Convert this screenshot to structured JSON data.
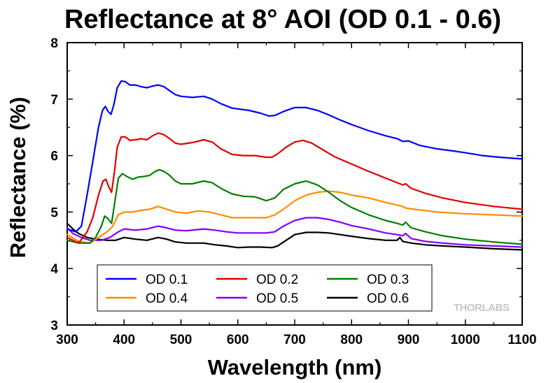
{
  "chart_data": {
    "type": "line",
    "title": "Reflectance at 8° AOI (OD 0.1 - 0.6)",
    "xlabel": "Wavelength (nm)",
    "ylabel": "Reflectance (%)",
    "xlim": [
      300,
      1100
    ],
    "ylim": [
      3,
      8
    ],
    "xticks": [
      300,
      400,
      500,
      600,
      700,
      800,
      900,
      1000,
      1100
    ],
    "yticks": [
      3,
      4,
      5,
      6,
      7,
      8
    ],
    "grid": false,
    "legend_position": "bottom-left",
    "watermark": "THORLABS",
    "series": [
      {
        "name": "OD 0.1",
        "color": "#0000ff",
        "points": [
          [
            300,
            4.7
          ],
          [
            315,
            4.65
          ],
          [
            325,
            4.75
          ],
          [
            335,
            5.3
          ],
          [
            345,
            5.9
          ],
          [
            355,
            6.5
          ],
          [
            362,
            6.8
          ],
          [
            367,
            6.87
          ],
          [
            372,
            6.78
          ],
          [
            377,
            6.73
          ],
          [
            382,
            6.9
          ],
          [
            388,
            7.2
          ],
          [
            395,
            7.32
          ],
          [
            402,
            7.31
          ],
          [
            410,
            7.25
          ],
          [
            420,
            7.25
          ],
          [
            430,
            7.22
          ],
          [
            440,
            7.2
          ],
          [
            450,
            7.23
          ],
          [
            460,
            7.25
          ],
          [
            470,
            7.22
          ],
          [
            480,
            7.15
          ],
          [
            490,
            7.08
          ],
          [
            500,
            7.05
          ],
          [
            520,
            7.03
          ],
          [
            540,
            7.05
          ],
          [
            555,
            7.0
          ],
          [
            570,
            6.92
          ],
          [
            590,
            6.84
          ],
          [
            620,
            6.8
          ],
          [
            640,
            6.75
          ],
          [
            655,
            6.7
          ],
          [
            665,
            6.71
          ],
          [
            680,
            6.78
          ],
          [
            700,
            6.85
          ],
          [
            720,
            6.85
          ],
          [
            740,
            6.8
          ],
          [
            760,
            6.72
          ],
          [
            780,
            6.63
          ],
          [
            800,
            6.55
          ],
          [
            830,
            6.44
          ],
          [
            860,
            6.35
          ],
          [
            880,
            6.3
          ],
          [
            890,
            6.25
          ],
          [
            900,
            6.26
          ],
          [
            920,
            6.18
          ],
          [
            950,
            6.12
          ],
          [
            980,
            6.08
          ],
          [
            1000,
            6.05
          ],
          [
            1030,
            6.0
          ],
          [
            1060,
            5.97
          ],
          [
            1100,
            5.94
          ]
        ]
      },
      {
        "name": "OD 0.2",
        "color": "#e00000",
        "points": [
          [
            300,
            4.55
          ],
          [
            320,
            4.45
          ],
          [
            335,
            4.65
          ],
          [
            345,
            4.9
          ],
          [
            355,
            5.3
          ],
          [
            363,
            5.55
          ],
          [
            368,
            5.58
          ],
          [
            373,
            5.45
          ],
          [
            378,
            5.35
          ],
          [
            383,
            5.7
          ],
          [
            388,
            6.15
          ],
          [
            395,
            6.33
          ],
          [
            402,
            6.33
          ],
          [
            410,
            6.27
          ],
          [
            420,
            6.28
          ],
          [
            430,
            6.3
          ],
          [
            440,
            6.28
          ],
          [
            450,
            6.35
          ],
          [
            460,
            6.4
          ],
          [
            470,
            6.37
          ],
          [
            480,
            6.3
          ],
          [
            490,
            6.22
          ],
          [
            500,
            6.2
          ],
          [
            520,
            6.23
          ],
          [
            540,
            6.28
          ],
          [
            555,
            6.24
          ],
          [
            570,
            6.12
          ],
          [
            590,
            6.02
          ],
          [
            610,
            6.0
          ],
          [
            630,
            6.0
          ],
          [
            650,
            5.97
          ],
          [
            660,
            5.97
          ],
          [
            670,
            6.03
          ],
          [
            685,
            6.15
          ],
          [
            700,
            6.24
          ],
          [
            715,
            6.27
          ],
          [
            730,
            6.22
          ],
          [
            750,
            6.1
          ],
          [
            770,
            5.98
          ],
          [
            800,
            5.85
          ],
          [
            830,
            5.72
          ],
          [
            860,
            5.6
          ],
          [
            885,
            5.5
          ],
          [
            890,
            5.48
          ],
          [
            895,
            5.5
          ],
          [
            905,
            5.42
          ],
          [
            930,
            5.33
          ],
          [
            960,
            5.25
          ],
          [
            1000,
            5.17
          ],
          [
            1050,
            5.1
          ],
          [
            1100,
            5.05
          ]
        ]
      },
      {
        "name": "OD 0.3",
        "color": "#008000",
        "points": [
          [
            300,
            4.5
          ],
          [
            320,
            4.45
          ],
          [
            340,
            4.45
          ],
          [
            350,
            4.55
          ],
          [
            360,
            4.75
          ],
          [
            366,
            4.93
          ],
          [
            372,
            4.88
          ],
          [
            378,
            4.8
          ],
          [
            384,
            5.2
          ],
          [
            390,
            5.6
          ],
          [
            397,
            5.68
          ],
          [
            405,
            5.63
          ],
          [
            415,
            5.58
          ],
          [
            425,
            5.62
          ],
          [
            435,
            5.63
          ],
          [
            445,
            5.65
          ],
          [
            455,
            5.72
          ],
          [
            462,
            5.75
          ],
          [
            470,
            5.72
          ],
          [
            480,
            5.65
          ],
          [
            490,
            5.55
          ],
          [
            500,
            5.5
          ],
          [
            520,
            5.5
          ],
          [
            540,
            5.55
          ],
          [
            555,
            5.52
          ],
          [
            570,
            5.42
          ],
          [
            590,
            5.32
          ],
          [
            610,
            5.28
          ],
          [
            630,
            5.27
          ],
          [
            650,
            5.2
          ],
          [
            665,
            5.25
          ],
          [
            680,
            5.4
          ],
          [
            700,
            5.5
          ],
          [
            720,
            5.55
          ],
          [
            740,
            5.48
          ],
          [
            760,
            5.35
          ],
          [
            780,
            5.2
          ],
          [
            800,
            5.08
          ],
          [
            830,
            4.95
          ],
          [
            860,
            4.85
          ],
          [
            880,
            4.8
          ],
          [
            890,
            4.77
          ],
          [
            895,
            4.82
          ],
          [
            905,
            4.72
          ],
          [
            930,
            4.65
          ],
          [
            960,
            4.58
          ],
          [
            1000,
            4.52
          ],
          [
            1050,
            4.47
          ],
          [
            1100,
            4.43
          ]
        ]
      },
      {
        "name": "OD 0.4",
        "color": "#ff8c00",
        "points": [
          [
            300,
            4.6
          ],
          [
            320,
            4.48
          ],
          [
            340,
            4.45
          ],
          [
            355,
            4.55
          ],
          [
            370,
            4.65
          ],
          [
            380,
            4.75
          ],
          [
            390,
            4.95
          ],
          [
            400,
            5.0
          ],
          [
            415,
            5.0
          ],
          [
            430,
            5.03
          ],
          [
            445,
            5.05
          ],
          [
            460,
            5.1
          ],
          [
            475,
            5.05
          ],
          [
            490,
            5.0
          ],
          [
            510,
            4.98
          ],
          [
            530,
            5.02
          ],
          [
            550,
            5.0
          ],
          [
            570,
            4.95
          ],
          [
            590,
            4.9
          ],
          [
            620,
            4.9
          ],
          [
            650,
            4.9
          ],
          [
            665,
            4.95
          ],
          [
            680,
            5.05
          ],
          [
            700,
            5.2
          ],
          [
            720,
            5.3
          ],
          [
            740,
            5.35
          ],
          [
            760,
            5.37
          ],
          [
            780,
            5.35
          ],
          [
            800,
            5.3
          ],
          [
            830,
            5.25
          ],
          [
            860,
            5.17
          ],
          [
            890,
            5.1
          ],
          [
            895,
            5.07
          ],
          [
            910,
            5.05
          ],
          [
            950,
            5.0
          ],
          [
            1000,
            4.97
          ],
          [
            1050,
            4.95
          ],
          [
            1100,
            4.93
          ]
        ]
      },
      {
        "name": "OD 0.5",
        "color": "#8000ff",
        "points": [
          [
            300,
            4.72
          ],
          [
            310,
            4.62
          ],
          [
            325,
            4.55
          ],
          [
            340,
            4.5
          ],
          [
            360,
            4.5
          ],
          [
            375,
            4.55
          ],
          [
            390,
            4.65
          ],
          [
            400,
            4.7
          ],
          [
            420,
            4.68
          ],
          [
            440,
            4.7
          ],
          [
            460,
            4.75
          ],
          [
            475,
            4.72
          ],
          [
            490,
            4.68
          ],
          [
            510,
            4.67
          ],
          [
            540,
            4.7
          ],
          [
            560,
            4.68
          ],
          [
            580,
            4.65
          ],
          [
            600,
            4.63
          ],
          [
            630,
            4.63
          ],
          [
            650,
            4.63
          ],
          [
            665,
            4.65
          ],
          [
            680,
            4.75
          ],
          [
            700,
            4.85
          ],
          [
            720,
            4.9
          ],
          [
            740,
            4.9
          ],
          [
            760,
            4.87
          ],
          [
            780,
            4.82
          ],
          [
            800,
            4.76
          ],
          [
            830,
            4.7
          ],
          [
            860,
            4.63
          ],
          [
            880,
            4.6
          ],
          [
            890,
            4.58
          ],
          [
            895,
            4.62
          ],
          [
            905,
            4.53
          ],
          [
            930,
            4.48
          ],
          [
            960,
            4.45
          ],
          [
            1000,
            4.42
          ],
          [
            1050,
            4.4
          ],
          [
            1100,
            4.38
          ]
        ]
      },
      {
        "name": "OD 0.6",
        "color": "#000000",
        "points": [
          [
            300,
            4.8
          ],
          [
            310,
            4.7
          ],
          [
            320,
            4.62
          ],
          [
            335,
            4.55
          ],
          [
            350,
            4.52
          ],
          [
            370,
            4.5
          ],
          [
            385,
            4.5
          ],
          [
            400,
            4.55
          ],
          [
            420,
            4.52
          ],
          [
            440,
            4.5
          ],
          [
            460,
            4.55
          ],
          [
            475,
            4.52
          ],
          [
            490,
            4.47
          ],
          [
            510,
            4.45
          ],
          [
            540,
            4.45
          ],
          [
            560,
            4.42
          ],
          [
            580,
            4.4
          ],
          [
            600,
            4.37
          ],
          [
            620,
            4.38
          ],
          [
            640,
            4.38
          ],
          [
            660,
            4.37
          ],
          [
            670,
            4.4
          ],
          [
            685,
            4.5
          ],
          [
            700,
            4.6
          ],
          [
            720,
            4.64
          ],
          [
            740,
            4.64
          ],
          [
            760,
            4.63
          ],
          [
            780,
            4.6
          ],
          [
            800,
            4.57
          ],
          [
            830,
            4.53
          ],
          [
            860,
            4.5
          ],
          [
            880,
            4.5
          ],
          [
            885,
            4.55
          ],
          [
            890,
            4.48
          ],
          [
            905,
            4.45
          ],
          [
            930,
            4.42
          ],
          [
            960,
            4.4
          ],
          [
            1000,
            4.38
          ],
          [
            1050,
            4.35
          ],
          [
            1100,
            4.33
          ]
        ]
      }
    ]
  }
}
